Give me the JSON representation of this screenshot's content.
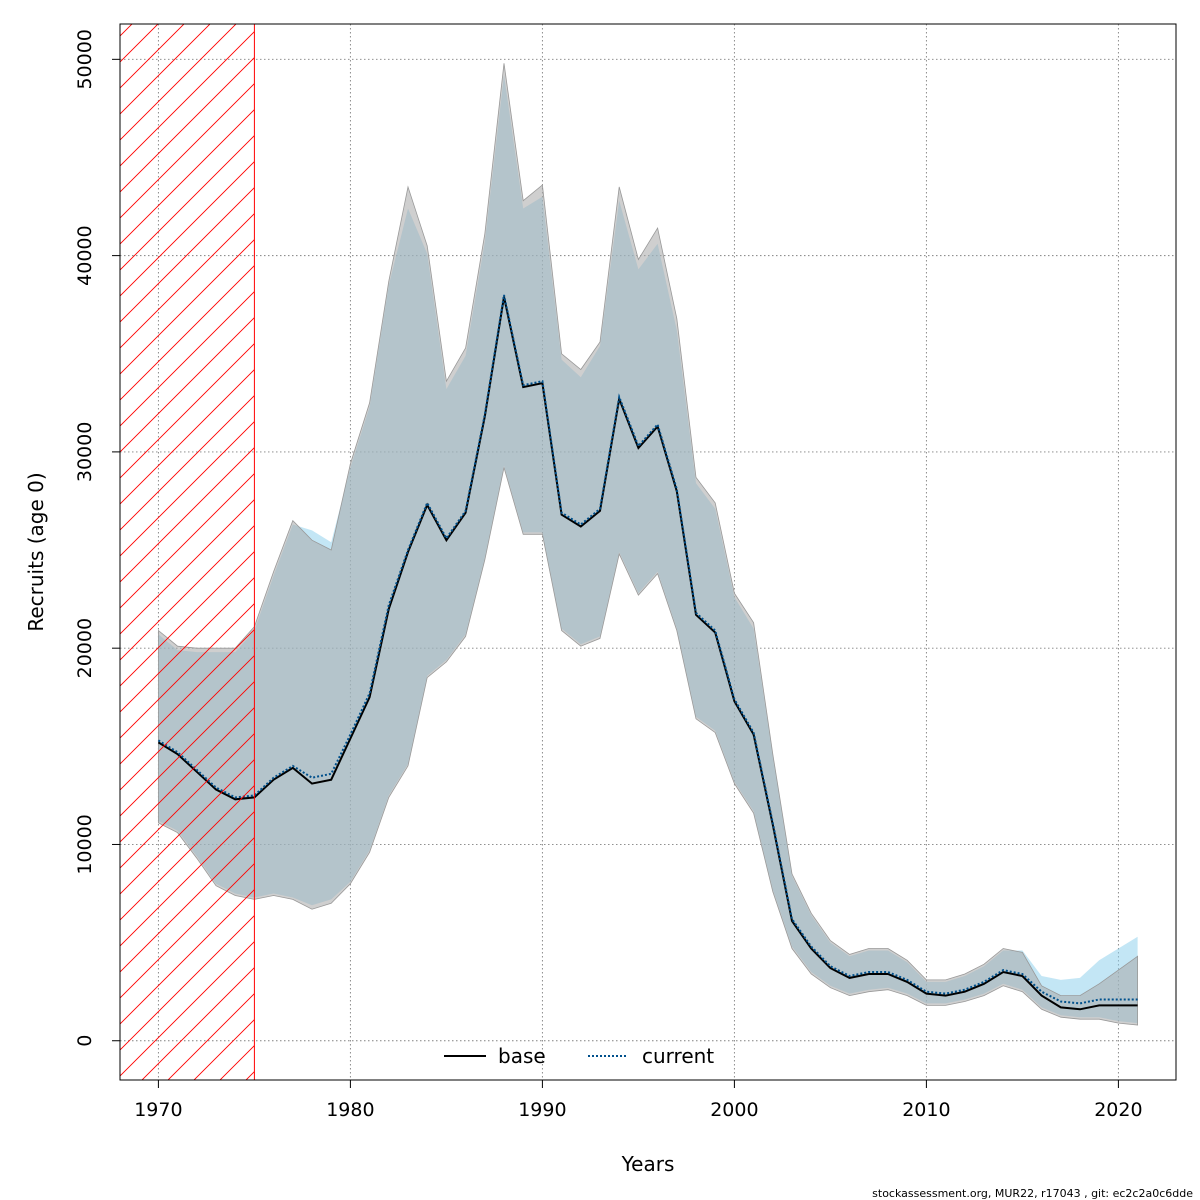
{
  "chart_data": {
    "type": "line",
    "title": "",
    "xlabel": "Years",
    "ylabel": "Recruits (age 0)",
    "xlim": [
      1968,
      2023
    ],
    "ylim": [
      -2000,
      51800
    ],
    "x_ticks": [
      1970,
      1980,
      1990,
      2000,
      2010,
      2020
    ],
    "y_ticks": [
      0,
      10000,
      20000,
      30000,
      40000,
      50000
    ],
    "grid": true,
    "legend_position": "bottom-center",
    "hatched_region": {
      "x_start": 1968,
      "x_end": 1975,
      "color": "#ff0000"
    },
    "colors": {
      "base_band": "#a8a8a8",
      "current_band": "#87ceeb",
      "base_line": "#000000",
      "current_line": "#00508c",
      "grid": "#808080"
    },
    "x": [
      1970,
      1971,
      1972,
      1973,
      1974,
      1975,
      1976,
      1977,
      1978,
      1979,
      1980,
      1981,
      1982,
      1983,
      1984,
      1985,
      1986,
      1987,
      1988,
      1989,
      1990,
      1991,
      1992,
      1993,
      1994,
      1995,
      1996,
      1997,
      1998,
      1999,
      2000,
      2001,
      2002,
      2003,
      2004,
      2005,
      2006,
      2007,
      2008,
      2009,
      2010,
      2011,
      2012,
      2013,
      2014,
      2015,
      2016,
      2017,
      2018,
      2019,
      2020,
      2021
    ],
    "series": [
      {
        "name": "base",
        "style": "solid",
        "values": [
          15200,
          14600,
          13700,
          12800,
          12300,
          12400,
          13300,
          13900,
          13100,
          13300,
          15400,
          17500,
          22000,
          24900,
          27300,
          25500,
          26900,
          31800,
          37900,
          33300,
          33500,
          26800,
          26200,
          27000,
          32700,
          30200,
          31300,
          28000,
          21700,
          20800,
          17300,
          15600,
          11000,
          6100,
          4700,
          3700,
          3200,
          3400,
          3400,
          3000,
          2400,
          2300,
          2500,
          2900,
          3500,
          3300,
          2300,
          1700,
          1600,
          1800,
          1800,
          1800
        ],
        "lower": [
          11100,
          10600,
          9300,
          7900,
          7400,
          7200,
          7400,
          7200,
          6700,
          7000,
          8000,
          9600,
          12400,
          14000,
          18500,
          19300,
          20600,
          24500,
          29200,
          25800,
          25800,
          20900,
          20100,
          20500,
          24800,
          22700,
          23800,
          20900,
          16400,
          15700,
          13100,
          11600,
          7600,
          4700,
          3400,
          2700,
          2300,
          2500,
          2600,
          2300,
          1800,
          1800,
          2000,
          2300,
          2800,
          2500,
          1600,
          1200,
          1100,
          1100,
          900,
          800
        ],
        "upper": [
          20900,
          20100,
          20000,
          20000,
          20000,
          21100,
          23900,
          26500,
          25500,
          25000,
          29400,
          32500,
          38700,
          43500,
          40500,
          33600,
          35300,
          41100,
          49800,
          42800,
          43600,
          35000,
          34200,
          35600,
          43500,
          39800,
          41400,
          36800,
          28700,
          27400,
          22800,
          21300,
          14600,
          8500,
          6500,
          5100,
          4400,
          4700,
          4700,
          4100,
          3100,
          3100,
          3400,
          3900,
          4700,
          4500,
          2800,
          2300,
          2300,
          2900,
          3600,
          4300
        ]
      },
      {
        "name": "current",
        "style": "dotted",
        "values": [
          15300,
          14700,
          13800,
          12900,
          12400,
          12500,
          13400,
          14000,
          13400,
          13600,
          15600,
          17700,
          22200,
          25000,
          27400,
          25600,
          27000,
          31900,
          38000,
          33400,
          33600,
          26900,
          26300,
          27100,
          32800,
          30300,
          31400,
          28100,
          21800,
          20900,
          17400,
          15700,
          11100,
          6200,
          4800,
          3800,
          3300,
          3500,
          3500,
          3100,
          2500,
          2400,
          2600,
          3000,
          3600,
          3400,
          2500,
          2000,
          1900,
          2100,
          2100,
          2100
        ],
        "lower": [
          11200,
          10700,
          9400,
          8000,
          7500,
          7300,
          7500,
          7300,
          6900,
          7200,
          8100,
          9700,
          12500,
          14100,
          18600,
          19400,
          20700,
          24600,
          29300,
          25900,
          25900,
          21000,
          20200,
          20600,
          24900,
          22800,
          23900,
          21000,
          16500,
          15800,
          13200,
          11700,
          7700,
          4800,
          3500,
          2800,
          2400,
          2600,
          2700,
          2400,
          1900,
          1900,
          2100,
          2400,
          2900,
          2600,
          1700,
          1300,
          1200,
          1200,
          1000,
          900
        ],
        "upper": [
          20700,
          19900,
          19800,
          19800,
          19800,
          20900,
          23700,
          26300,
          26000,
          25400,
          29200,
          32300,
          38500,
          42400,
          40100,
          33200,
          34900,
          40700,
          49200,
          42400,
          43000,
          34700,
          33800,
          35400,
          42800,
          39300,
          40600,
          36200,
          28400,
          27100,
          22600,
          21000,
          14500,
          8400,
          6400,
          5000,
          4300,
          4600,
          4600,
          4000,
          3000,
          3000,
          3300,
          3800,
          4600,
          4600,
          3300,
          3100,
          3200,
          4100,
          4700,
          5300
        ]
      }
    ]
  },
  "legend": {
    "base_label": "base",
    "current_label": "current"
  },
  "footer": {
    "text": "stockassessment.org, MUR22, r17043 , git: ec2c2a0c6dde"
  }
}
